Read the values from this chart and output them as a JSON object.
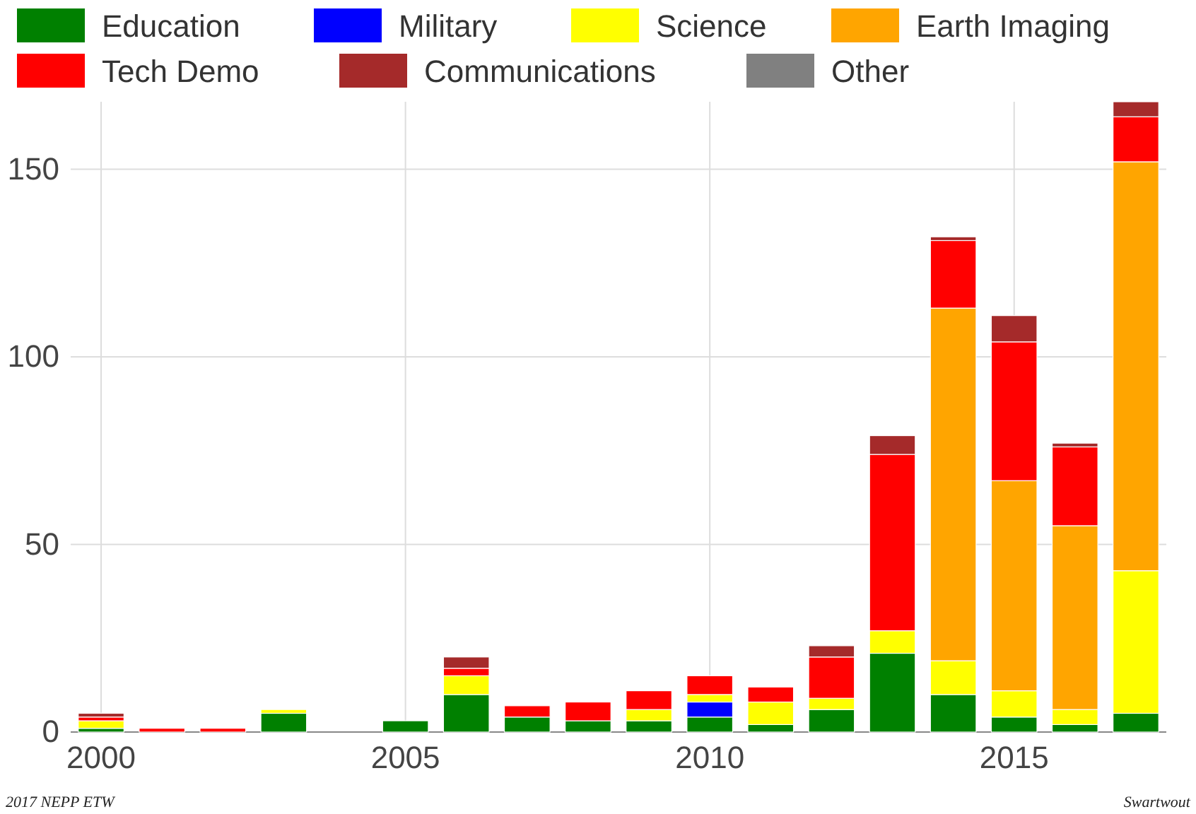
{
  "chart_data": {
    "type": "bar",
    "stacked": true,
    "x": [
      2000,
      2001,
      2002,
      2003,
      2004,
      2005,
      2006,
      2007,
      2008,
      2009,
      2010,
      2011,
      2012,
      2013,
      2014,
      2015,
      2016,
      2017
    ],
    "series": [
      {
        "name": "Education",
        "color": "#008000",
        "values": [
          1,
          0,
          0,
          5,
          0,
          3,
          10,
          4,
          3,
          3,
          4,
          2,
          6,
          21,
          10,
          4,
          2,
          5
        ]
      },
      {
        "name": "Military",
        "color": "#0000ff",
        "values": [
          0,
          0,
          0,
          0,
          0,
          0,
          0,
          0,
          0,
          0,
          4,
          0,
          0,
          0,
          0,
          0,
          0,
          0
        ]
      },
      {
        "name": "Science",
        "color": "#ffff00",
        "values": [
          2,
          0,
          0,
          1,
          0,
          0,
          5,
          0,
          0,
          3,
          2,
          6,
          3,
          6,
          9,
          7,
          4,
          38
        ]
      },
      {
        "name": "Earth Imaging",
        "color": "#ffa500",
        "values": [
          0,
          0,
          0,
          0,
          0,
          0,
          0,
          0,
          0,
          0,
          0,
          0,
          0,
          0,
          94,
          56,
          49,
          109
        ]
      },
      {
        "name": "Tech Demo",
        "color": "#ff0000",
        "values": [
          1,
          1,
          1,
          0,
          0,
          0,
          2,
          3,
          5,
          5,
          5,
          4,
          11,
          47,
          18,
          37,
          21,
          12
        ]
      },
      {
        "name": "Communications",
        "color": "#a52a2a",
        "values": [
          1,
          0,
          0,
          0,
          0,
          0,
          3,
          0,
          0,
          0,
          0,
          0,
          3,
          5,
          1,
          7,
          1,
          4
        ]
      },
      {
        "name": "Other",
        "color": "#808080",
        "values": [
          0,
          0,
          0,
          0,
          0,
          0,
          0,
          0,
          0,
          0,
          0,
          0,
          0,
          0,
          0,
          0,
          0,
          0
        ]
      }
    ],
    "xlim": [
      1999.5,
      2017.5
    ],
    "xticks": [
      2000,
      2005,
      2010,
      2015
    ],
    "ylim": [
      0,
      168
    ],
    "yticks": [
      0,
      50,
      100,
      150
    ],
    "grid": true,
    "legend": "top",
    "annotations": [
      "2017 NEPP ETW",
      "Swartwout"
    ]
  }
}
